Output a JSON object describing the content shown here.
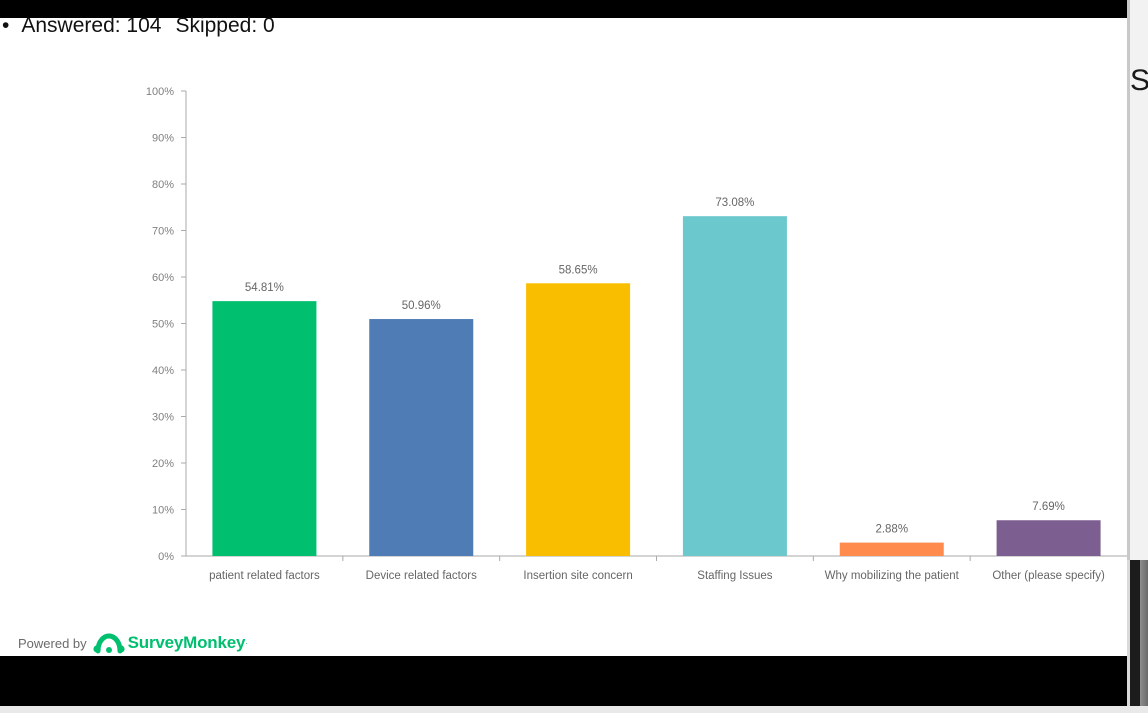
{
  "summary": {
    "bullet": "•",
    "answered": "Answered: 104",
    "skipped": "Skipped: 0"
  },
  "side_text": "S",
  "footer": {
    "powered_by": "Powered by",
    "brand": "SurveyMonkey",
    "trademark": "·"
  },
  "colors": {
    "axis": "#aaaaaa",
    "tick_text": "#7f7f7f",
    "label_text": "#666666"
  },
  "chart_data": {
    "type": "bar",
    "title": "",
    "xlabel": "",
    "ylabel": "",
    "ylim": [
      0,
      100
    ],
    "y_ticks": [
      "0%",
      "10%",
      "20%",
      "30%",
      "40%",
      "50%",
      "60%",
      "70%",
      "80%",
      "90%",
      "100%"
    ],
    "grid": false,
    "categories": [
      "patient related factors",
      "Device related factors",
      "Insertion site concern",
      "Staffing Issues",
      "Why mobilizing the patient",
      "Other (please specify)"
    ],
    "values": [
      54.81,
      50.96,
      58.65,
      73.08,
      2.88,
      7.69
    ],
    "value_labels": [
      "54.81%",
      "50.96%",
      "58.65%",
      "73.08%",
      "2.88%",
      "7.69%"
    ],
    "colors": [
      "#00bf6f",
      "#507cb6",
      "#f9be00",
      "#6bc8cd",
      "#ff8b4f",
      "#7d5e90"
    ]
  }
}
